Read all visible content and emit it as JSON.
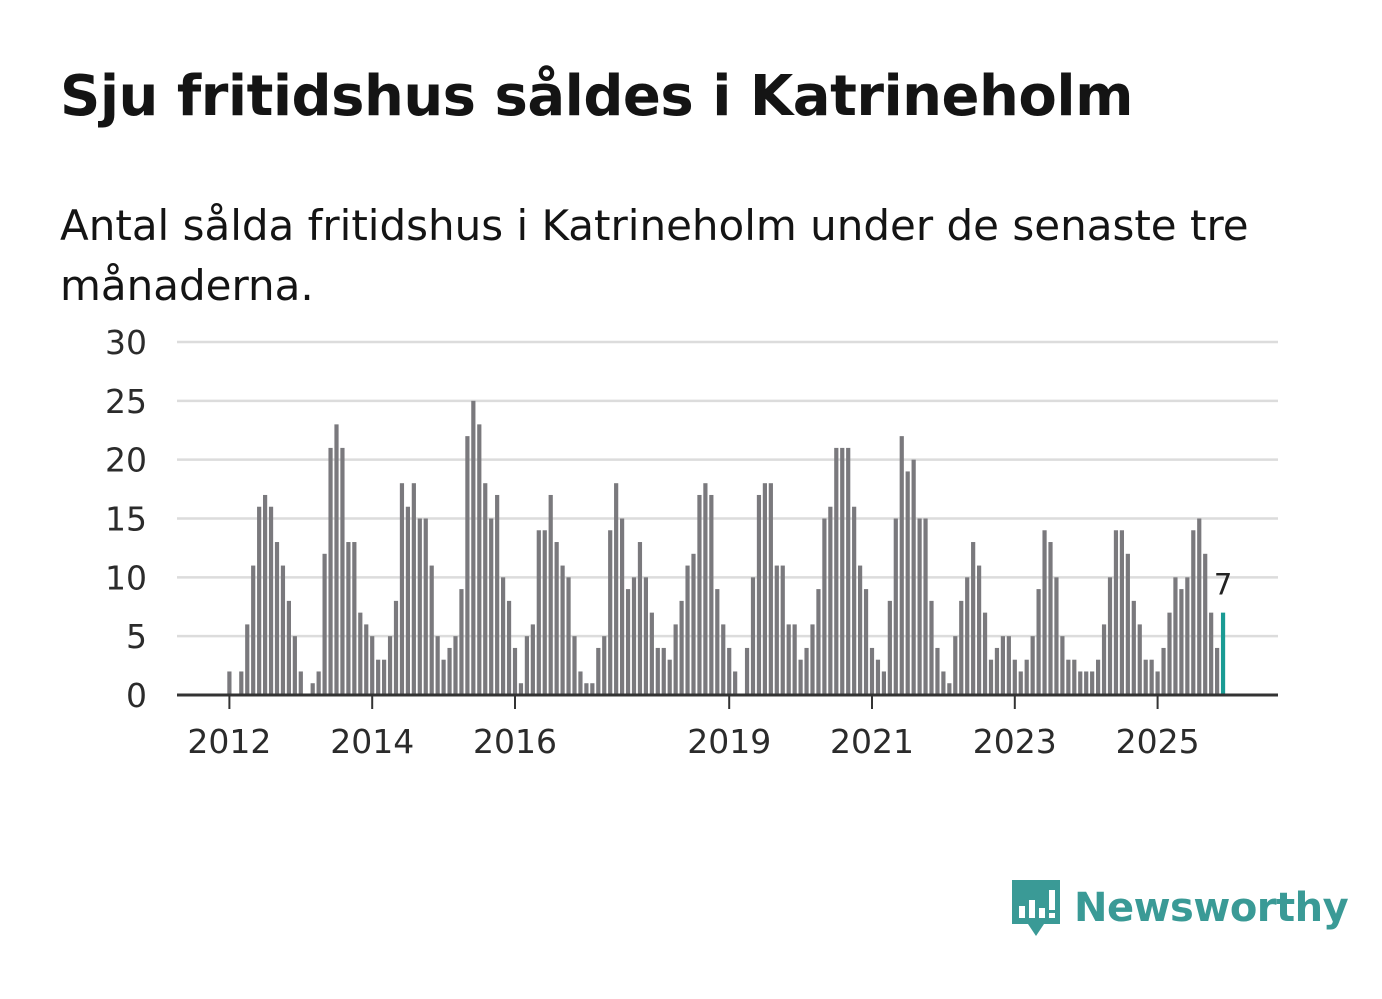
{
  "title": "Sju fritidshus såldes i Katrineholm",
  "subtitle": "Antal sålda fritidshus i Katrineholm under de senaste tre månaderna.",
  "brand": {
    "name": "Newsworthy",
    "color": "#3a9a96"
  },
  "colors": {
    "bar": "#7a797d",
    "highlight": "#1a9b94",
    "grid": "#dcdcdc",
    "axis": "#333333"
  },
  "chart_data": {
    "type": "bar",
    "title": "Antal sålda fritidshus i Katrineholm",
    "xlabel": "",
    "ylabel": "",
    "ylim": [
      0,
      30
    ],
    "yticks": [
      "0",
      "5",
      "10",
      "15",
      "20",
      "25",
      "30"
    ],
    "xticks": [
      {
        "label": "2012",
        "index": 0
      },
      {
        "label": "2014",
        "index": 24
      },
      {
        "label": "2016",
        "index": 48
      },
      {
        "label": "2019",
        "index": 84
      },
      {
        "label": "2021",
        "index": 108
      },
      {
        "label": "2023",
        "index": 132
      },
      {
        "label": "2025",
        "index": 156
      }
    ],
    "start_month": "2012-01",
    "values": [
      2,
      0,
      2,
      6,
      11,
      16,
      17,
      16,
      13,
      11,
      8,
      5,
      2,
      0,
      1,
      2,
      12,
      21,
      23,
      21,
      13,
      13,
      7,
      6,
      5,
      3,
      3,
      5,
      8,
      18,
      16,
      18,
      15,
      15,
      11,
      5,
      3,
      4,
      5,
      9,
      22,
      25,
      23,
      18,
      15,
      17,
      10,
      8,
      4,
      1,
      5,
      6,
      14,
      14,
      17,
      13,
      11,
      10,
      5,
      2,
      1,
      1,
      4,
      5,
      14,
      18,
      15,
      9,
      10,
      13,
      10,
      7,
      4,
      4,
      3,
      6,
      8,
      11,
      12,
      17,
      18,
      17,
      9,
      6,
      4,
      2,
      0,
      4,
      10,
      17,
      18,
      18,
      11,
      11,
      6,
      6,
      3,
      4,
      6,
      9,
      15,
      16,
      21,
      21,
      21,
      16,
      11,
      9,
      4,
      3,
      2,
      8,
      15,
      22,
      19,
      20,
      15,
      15,
      8,
      4,
      2,
      1,
      5,
      8,
      10,
      13,
      11,
      7,
      3,
      4,
      5,
      5,
      3,
      2,
      3,
      5,
      9,
      14,
      13,
      10,
      5,
      3,
      3,
      2,
      2,
      2,
      3,
      6,
      10,
      14,
      14,
      12,
      8,
      6,
      3,
      3,
      2,
      4,
      7,
      10,
      9,
      10,
      14,
      15,
      12,
      7,
      4,
      7
    ],
    "highlight_index": 167,
    "annotations": [
      {
        "index": 167,
        "text": "7"
      }
    ]
  }
}
